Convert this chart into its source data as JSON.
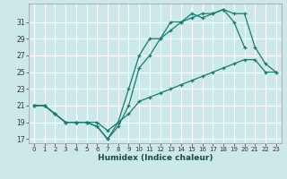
{
  "xlabel": "Humidex (Indice chaleur)",
  "bg_color": "#cce8e8",
  "grid_color": "#ffffff",
  "line_color": "#1a7a6e",
  "xlim": [
    -0.5,
    23.5
  ],
  "ylim": [
    16.5,
    33.2
  ],
  "xticks": [
    0,
    1,
    2,
    3,
    4,
    5,
    6,
    7,
    8,
    9,
    10,
    11,
    12,
    13,
    14,
    15,
    16,
    17,
    18,
    19,
    20,
    21,
    22,
    23
  ],
  "yticks": [
    17,
    19,
    21,
    23,
    25,
    27,
    29,
    31
  ],
  "line1_x": [
    0,
    1,
    2,
    3,
    4,
    5,
    6,
    7,
    8,
    9,
    10,
    11,
    12,
    13,
    14,
    15,
    16,
    17,
    18,
    19,
    20
  ],
  "line1_y": [
    21,
    21,
    20,
    19,
    19,
    19,
    18.5,
    17,
    19,
    23,
    27,
    29,
    29,
    31,
    31,
    32,
    31.5,
    32,
    32.5,
    31,
    28
  ],
  "line2_x": [
    0,
    1,
    2,
    3,
    4,
    5,
    6,
    7,
    8,
    9,
    10,
    11,
    12,
    13,
    14,
    15,
    16,
    17,
    18,
    19,
    20,
    21,
    22,
    23
  ],
  "line2_y": [
    21,
    21,
    20,
    19,
    19,
    19,
    18.5,
    17,
    18.5,
    21,
    25.5,
    27,
    29,
    30,
    31,
    31.5,
    32,
    32,
    32.5,
    32,
    32,
    28,
    26,
    25
  ],
  "line3_x": [
    0,
    1,
    2,
    3,
    4,
    5,
    6,
    7,
    8,
    9,
    10,
    11,
    12,
    13,
    14,
    15,
    16,
    17,
    18,
    19,
    20,
    21,
    22,
    23
  ],
  "line3_y": [
    21,
    21,
    20,
    19,
    19,
    19,
    19,
    18,
    19,
    20,
    21.5,
    22,
    22.5,
    23,
    23.5,
    24,
    24.5,
    25,
    25.5,
    26,
    26.5,
    26.5,
    25,
    25
  ]
}
